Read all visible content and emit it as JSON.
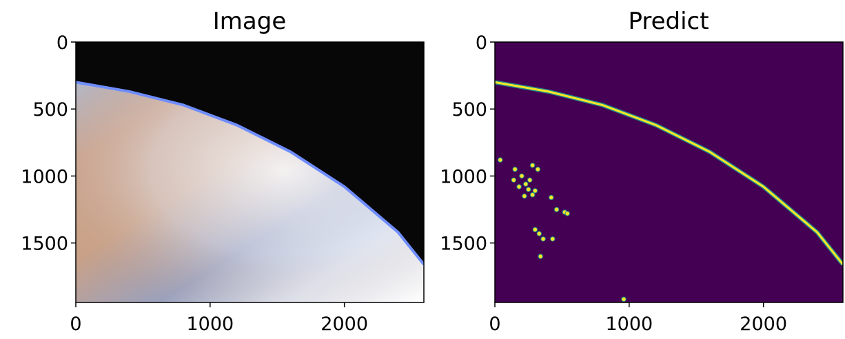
{
  "figure": {
    "panels": [
      {
        "title": "Image"
      },
      {
        "title": "Predict"
      }
    ]
  },
  "chart_data": [
    {
      "type": "image",
      "title": "Image",
      "xlabel": "",
      "ylabel": "",
      "xlim": [
        0,
        2592
      ],
      "ylim": [
        1944,
        0
      ],
      "x_ticks": [
        0,
        1000,
        2000
      ],
      "y_ticks": [
        0,
        500,
        1000,
        1500
      ],
      "content": {
        "horizon_curve": [
          [
            0,
            300
          ],
          [
            400,
            370
          ],
          [
            800,
            470
          ],
          [
            1200,
            620
          ],
          [
            1600,
            820
          ],
          [
            2000,
            1080
          ],
          [
            2400,
            1420
          ],
          [
            2592,
            1660
          ]
        ],
        "sky_color": "#070707",
        "limb_color": "#6f8dff",
        "earth_colors": [
          "#c79b7c",
          "#d6a98e",
          "#9fa9c4",
          "#e6edf7",
          "#f7f7fb"
        ]
      }
    },
    {
      "type": "image",
      "title": "Predict",
      "xlabel": "",
      "ylabel": "",
      "xlim": [
        0,
        2592
      ],
      "ylim": [
        1944,
        0
      ],
      "x_ticks": [
        0,
        1000,
        2000
      ],
      "y_ticks": [
        0,
        500,
        1000,
        1500
      ],
      "content": {
        "background_color": "#440154",
        "line_color": "#fde725",
        "edge_color": "#21918c",
        "predicted_horizon": [
          [
            0,
            300
          ],
          [
            400,
            370
          ],
          [
            800,
            470
          ],
          [
            1200,
            620
          ],
          [
            1600,
            820
          ],
          [
            2000,
            1080
          ],
          [
            2400,
            1420
          ],
          [
            2592,
            1660
          ]
        ],
        "blobs": [
          [
            40,
            880
          ],
          [
            150,
            950
          ],
          [
            200,
            1000
          ],
          [
            230,
            1060
          ],
          [
            250,
            1100
          ],
          [
            280,
            1140
          ],
          [
            220,
            1150
          ],
          [
            180,
            1080
          ],
          [
            140,
            1030
          ],
          [
            260,
            1030
          ],
          [
            300,
            1110
          ],
          [
            320,
            950
          ],
          [
            280,
            920
          ],
          [
            420,
            1160
          ],
          [
            460,
            1250
          ],
          [
            520,
            1270
          ],
          [
            540,
            1280
          ],
          [
            300,
            1400
          ],
          [
            330,
            1430
          ],
          [
            360,
            1470
          ],
          [
            430,
            1470
          ],
          [
            340,
            1600
          ],
          [
            960,
            1920
          ]
        ]
      }
    }
  ]
}
